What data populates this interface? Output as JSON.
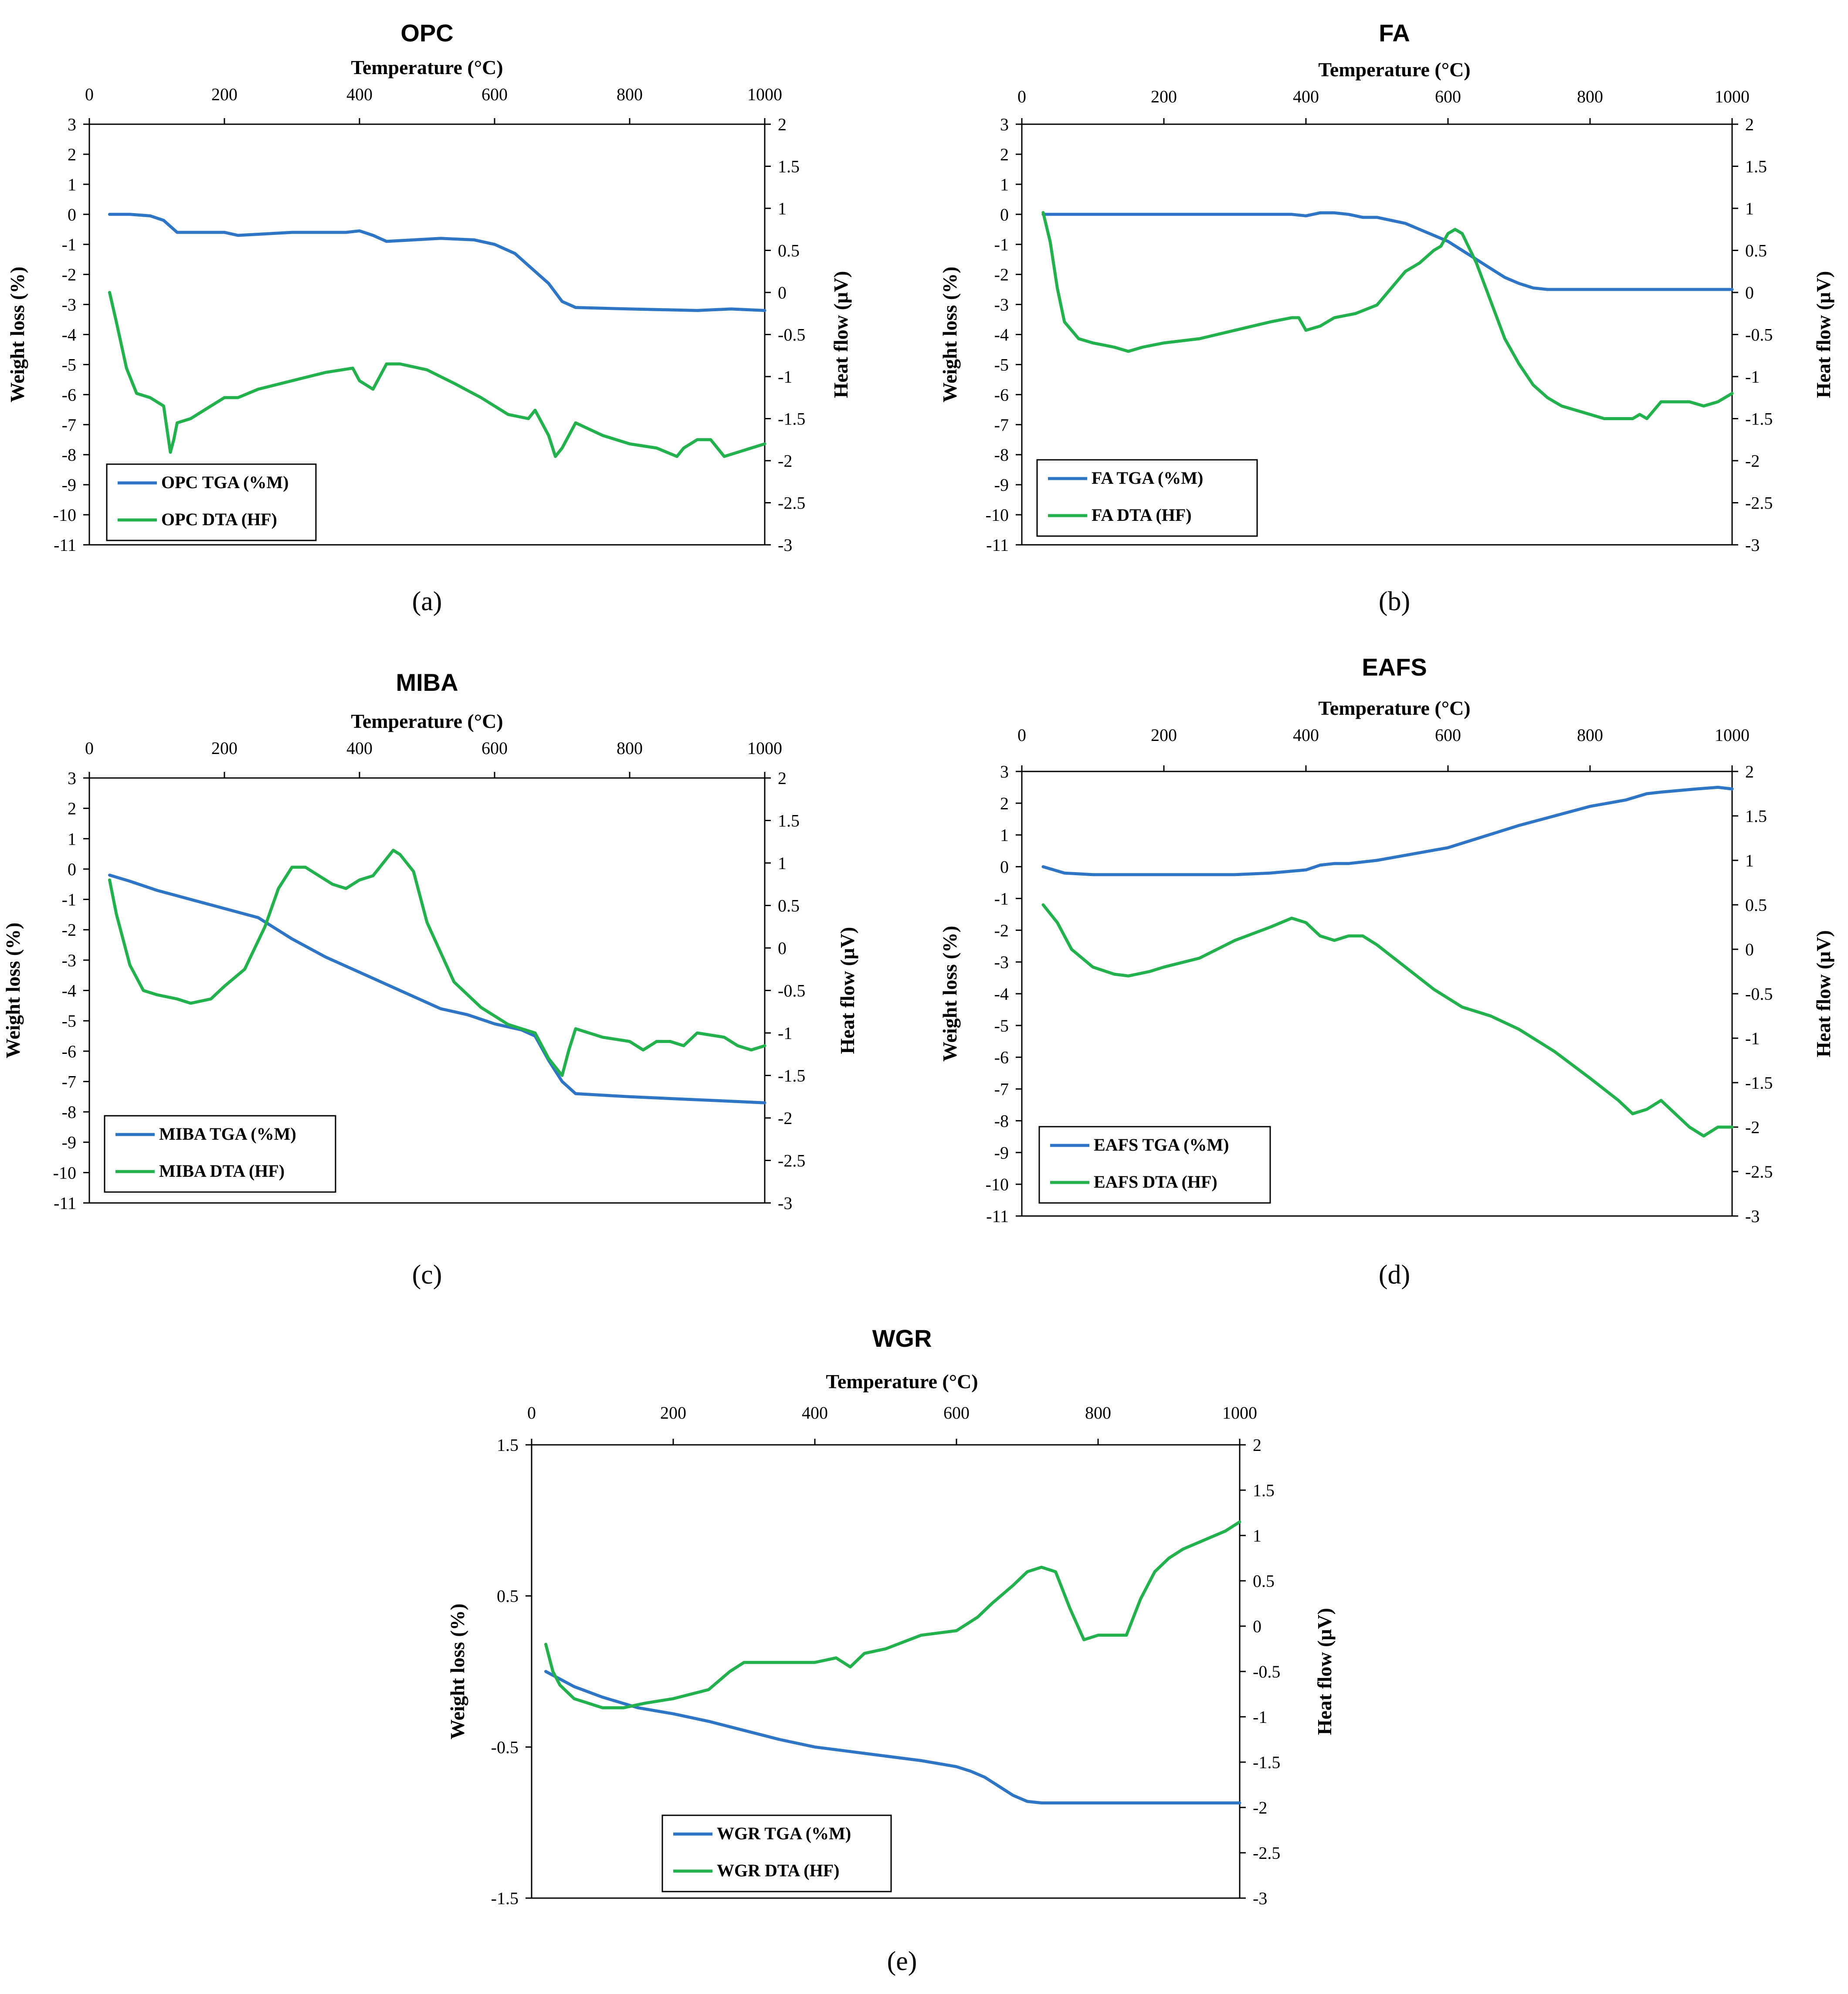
{
  "figure": {
    "panels": [
      "a",
      "b",
      "c",
      "d",
      "e"
    ]
  },
  "colors": {
    "tga": "#2e75c6",
    "dta": "#22b14c",
    "axis": "#000000"
  },
  "chart_data": [
    {
      "id": "a",
      "type": "line",
      "title": "OPC",
      "caption": "(a)",
      "xlabel": "Temperature (°C)",
      "ylabel": "Weight loss (%)",
      "y2label": "Heat flow (μV)",
      "xlim": [
        0,
        1000
      ],
      "xticks": [
        0,
        200,
        400,
        600,
        800,
        1000
      ],
      "ylim": [
        -11,
        3
      ],
      "yticks": [
        3,
        2,
        1,
        0,
        -1,
        -2,
        -3,
        -4,
        -5,
        -6,
        -7,
        -8,
        -9,
        -10,
        -11
      ],
      "y2lim": [
        -3,
        2
      ],
      "y2ticks": [
        2,
        1.5,
        1,
        0.5,
        0,
        -0.5,
        -1,
        -1.5,
        -2,
        -2.5,
        -3
      ],
      "series": [
        {
          "name": "OPC TGA (%M)",
          "axis": "left",
          "color_key": "tga",
          "x": [
            30,
            60,
            90,
            110,
            130,
            200,
            220,
            260,
            300,
            350,
            380,
            400,
            420,
            440,
            480,
            520,
            570,
            600,
            630,
            650,
            680,
            700,
            720,
            800,
            900,
            950,
            1000
          ],
          "y": [
            0,
            0,
            -0.05,
            -0.2,
            -0.6,
            -0.6,
            -0.7,
            -0.65,
            -0.6,
            -0.6,
            -0.6,
            -0.55,
            -0.7,
            -0.9,
            -0.85,
            -0.8,
            -0.85,
            -1.0,
            -1.3,
            -1.7,
            -2.3,
            -2.9,
            -3.1,
            -3.15,
            -3.2,
            -3.15,
            -3.2
          ]
        },
        {
          "name": "OPC DTA (HF)",
          "axis": "right",
          "color_key": "dta",
          "x": [
            30,
            40,
            55,
            70,
            90,
            110,
            120,
            125,
            130,
            150,
            180,
            200,
            220,
            250,
            300,
            350,
            390,
            400,
            410,
            420,
            440,
            460,
            500,
            540,
            580,
            620,
            650,
            660,
            680,
            690,
            700,
            720,
            760,
            800,
            840,
            870,
            880,
            900,
            920,
            940,
            960,
            980,
            1000
          ],
          "y": [
            0,
            -0.35,
            -0.9,
            -1.2,
            -1.25,
            -1.35,
            -1.9,
            -1.75,
            -1.55,
            -1.5,
            -1.35,
            -1.25,
            -1.25,
            -1.15,
            -1.05,
            -0.95,
            -0.9,
            -1.05,
            -1.1,
            -1.15,
            -0.85,
            -0.85,
            -0.92,
            -1.08,
            -1.25,
            -1.45,
            -1.5,
            -1.4,
            -1.7,
            -1.95,
            -1.85,
            -1.55,
            -1.7,
            -1.8,
            -1.85,
            -1.95,
            -1.85,
            -1.75,
            -1.75,
            -1.95,
            -1.9,
            -1.85,
            -1.8
          ]
        }
      ],
      "legend": [
        "OPC TGA (%M)",
        "OPC DTA (HF)"
      ]
    },
    {
      "id": "b",
      "type": "line",
      "title": "FA",
      "caption": "(b)",
      "xlabel": "Temperature (°C)",
      "ylabel": "Weight loss (%)",
      "y2label": "Heat flow (μV)",
      "xlim": [
        0,
        1000
      ],
      "xticks": [
        0,
        200,
        400,
        600,
        800,
        1000
      ],
      "ylim": [
        -11,
        3
      ],
      "yticks": [
        3,
        2,
        1,
        0,
        -1,
        -2,
        -3,
        -4,
        -5,
        -6,
        -7,
        -8,
        -9,
        -10,
        -11
      ],
      "y2lim": [
        -3,
        2
      ],
      "y2ticks": [
        2,
        1.5,
        1,
        0.5,
        0,
        -0.5,
        -1,
        -1.5,
        -2,
        -2.5,
        -3
      ],
      "series": [
        {
          "name": "FA TGA (%M)",
          "axis": "left",
          "color_key": "tga",
          "x": [
            30,
            100,
            200,
            300,
            380,
            400,
            420,
            440,
            460,
            480,
            500,
            520,
            540,
            560,
            580,
            600,
            620,
            640,
            660,
            680,
            700,
            720,
            740,
            760,
            800,
            900,
            1000
          ],
          "y": [
            0,
            0,
            0,
            0,
            0,
            -0.05,
            0.05,
            0.05,
            0,
            -0.1,
            -0.1,
            -0.2,
            -0.3,
            -0.5,
            -0.7,
            -0.9,
            -1.2,
            -1.5,
            -1.8,
            -2.1,
            -2.3,
            -2.45,
            -2.5,
            -2.5,
            -2.5,
            -2.5,
            -2.5
          ]
        },
        {
          "name": "FA DTA (HF)",
          "axis": "right",
          "color_key": "dta",
          "x": [
            30,
            40,
            50,
            60,
            80,
            100,
            130,
            150,
            170,
            200,
            250,
            300,
            350,
            380,
            390,
            400,
            420,
            440,
            470,
            500,
            520,
            540,
            560,
            580,
            590,
            600,
            610,
            620,
            640,
            660,
            680,
            700,
            720,
            740,
            760,
            800,
            820,
            840,
            860,
            870,
            880,
            900,
            920,
            940,
            960,
            980,
            1000
          ],
          "y": [
            0.95,
            0.6,
            0.05,
            -0.35,
            -0.55,
            -0.6,
            -0.65,
            -0.7,
            -0.65,
            -0.6,
            -0.55,
            -0.45,
            -0.35,
            -0.3,
            -0.3,
            -0.45,
            -0.4,
            -0.3,
            -0.25,
            -0.15,
            0.05,
            0.25,
            0.35,
            0.5,
            0.55,
            0.7,
            0.75,
            0.7,
            0.35,
            -0.1,
            -0.55,
            -0.85,
            -1.1,
            -1.25,
            -1.35,
            -1.45,
            -1.5,
            -1.5,
            -1.5,
            -1.45,
            -1.5,
            -1.3,
            -1.3,
            -1.3,
            -1.35,
            -1.3,
            -1.2
          ]
        }
      ],
      "legend": [
        "FA TGA (%M)",
        "FA DTA (HF)"
      ]
    },
    {
      "id": "c",
      "type": "line",
      "title": "MIBA",
      "caption": "(c)",
      "xlabel": "Temperature (°C)",
      "ylabel": "Weight loss (%)",
      "y2label": "Heat flow (μV)",
      "xlim": [
        0,
        1000
      ],
      "xticks": [
        0,
        200,
        400,
        600,
        800,
        1000
      ],
      "ylim": [
        -11,
        3
      ],
      "yticks": [
        3,
        2,
        1,
        0,
        -1,
        -2,
        -3,
        -4,
        -5,
        -6,
        -7,
        -8,
        -9,
        -10,
        -11
      ],
      "y2lim": [
        -3,
        2
      ],
      "y2ticks": [
        2,
        1.5,
        1,
        0.5,
        0,
        -0.5,
        -1,
        -1.5,
        -2,
        -2.5,
        -3
      ],
      "series": [
        {
          "name": "MIBA TGA (%M)",
          "axis": "left",
          "color_key": "tga",
          "x": [
            30,
            60,
            100,
            150,
            200,
            250,
            300,
            350,
            400,
            440,
            480,
            520,
            560,
            600,
            640,
            660,
            680,
            700,
            720,
            800,
            900,
            1000
          ],
          "y": [
            -0.2,
            -0.4,
            -0.7,
            -1.0,
            -1.3,
            -1.6,
            -2.3,
            -2.9,
            -3.4,
            -3.8,
            -4.2,
            -4.6,
            -4.8,
            -5.1,
            -5.3,
            -5.5,
            -6.3,
            -7.0,
            -7.4,
            -7.5,
            -7.6,
            -7.7
          ]
        },
        {
          "name": "MIBA DTA (HF)",
          "axis": "right",
          "color_key": "dta",
          "x": [
            30,
            40,
            60,
            80,
            100,
            130,
            150,
            180,
            200,
            230,
            260,
            280,
            300,
            320,
            340,
            360,
            380,
            400,
            420,
            440,
            450,
            460,
            480,
            500,
            540,
            580,
            620,
            640,
            660,
            680,
            700,
            710,
            720,
            760,
            800,
            820,
            840,
            860,
            880,
            900,
            940,
            960,
            980,
            1000
          ],
          "y": [
            0.8,
            0.4,
            -0.2,
            -0.5,
            -0.55,
            -0.6,
            -0.65,
            -0.6,
            -0.45,
            -0.25,
            0.25,
            0.7,
            0.95,
            0.95,
            0.85,
            0.75,
            0.7,
            0.8,
            0.85,
            1.05,
            1.15,
            1.1,
            0.9,
            0.3,
            -0.4,
            -0.7,
            -0.9,
            -0.95,
            -1.0,
            -1.3,
            -1.5,
            -1.2,
            -0.95,
            -1.05,
            -1.1,
            -1.2,
            -1.1,
            -1.1,
            -1.15,
            -1.0,
            -1.05,
            -1.15,
            -1.2,
            -1.15
          ]
        }
      ],
      "legend": [
        "MIBA TGA (%M)",
        "MIBA DTA (HF)"
      ]
    },
    {
      "id": "d",
      "type": "line",
      "title": "EAFS",
      "caption": "(d)",
      "xlabel": "Temperature (°C)",
      "ylabel": "Weight loss (%)",
      "y2label": "Heat flow (μV)",
      "xlim": [
        0,
        1000
      ],
      "xticks": [
        0,
        200,
        400,
        600,
        800,
        1000
      ],
      "ylim": [
        -11,
        3
      ],
      "yticks": [
        3,
        2,
        1,
        0,
        -1,
        -2,
        -3,
        -4,
        -5,
        -6,
        -7,
        -8,
        -9,
        -10,
        -11
      ],
      "y2lim": [
        -3,
        2
      ],
      "y2ticks": [
        2,
        1.5,
        1,
        0.5,
        0,
        -0.5,
        -1,
        -1.5,
        -2,
        -2.5,
        -3
      ],
      "series": [
        {
          "name": "EAFS TGA (%M)",
          "axis": "left",
          "color_key": "tga",
          "x": [
            30,
            60,
            100,
            200,
            300,
            350,
            400,
            420,
            440,
            460,
            500,
            550,
            600,
            650,
            700,
            750,
            800,
            850,
            880,
            900,
            950,
            980,
            1000
          ],
          "y": [
            0,
            -0.2,
            -0.25,
            -0.25,
            -0.25,
            -0.2,
            -0.1,
            0.05,
            0.1,
            0.1,
            0.2,
            0.4,
            0.6,
            0.95,
            1.3,
            1.6,
            1.9,
            2.1,
            2.3,
            2.35,
            2.45,
            2.5,
            2.45
          ]
        },
        {
          "name": "EAFS DTA (HF)",
          "axis": "right",
          "color_key": "dta",
          "x": [
            30,
            50,
            70,
            100,
            130,
            150,
            180,
            200,
            250,
            300,
            350,
            380,
            400,
            420,
            440,
            460,
            480,
            500,
            540,
            580,
            620,
            660,
            700,
            750,
            800,
            840,
            860,
            880,
            900,
            920,
            940,
            960,
            980,
            1000
          ],
          "y": [
            0.5,
            0.3,
            0.0,
            -0.2,
            -0.28,
            -0.3,
            -0.25,
            -0.2,
            -0.1,
            0.1,
            0.25,
            0.35,
            0.3,
            0.15,
            0.1,
            0.15,
            0.15,
            0.05,
            -0.2,
            -0.45,
            -0.65,
            -0.75,
            -0.9,
            -1.15,
            -1.45,
            -1.7,
            -1.85,
            -1.8,
            -1.7,
            -1.85,
            -2.0,
            -2.1,
            -2.0,
            -2.0
          ]
        }
      ],
      "legend": [
        "EAFS TGA (%M)",
        "EAFS DTA (HF)"
      ]
    },
    {
      "id": "e",
      "type": "line",
      "title": "WGR",
      "caption": "(e)",
      "xlabel": "Temperature (°C)",
      "ylabel": "Weight loss (%)",
      "y2label": "Heat flow (μV)",
      "xlim": [
        0,
        1000
      ],
      "xticks": [
        0,
        200,
        400,
        600,
        800,
        1000
      ],
      "ylim": [
        -1.5,
        1.5
      ],
      "yticks": [
        1.5,
        0.5,
        -0.5,
        -1.5
      ],
      "y2lim": [
        -3,
        2
      ],
      "y2ticks": [
        2,
        1.5,
        1,
        0.5,
        0,
        -0.5,
        -1,
        -1.5,
        -2,
        -2.5,
        -3
      ],
      "series": [
        {
          "name": "WGR TGA (%M)",
          "axis": "left",
          "color_key": "tga",
          "x": [
            20,
            40,
            60,
            100,
            150,
            200,
            250,
            300,
            350,
            400,
            450,
            500,
            550,
            600,
            620,
            640,
            660,
            680,
            700,
            720,
            800,
            900,
            1000
          ],
          "y": [
            0.0,
            -0.05,
            -0.1,
            -0.17,
            -0.24,
            -0.28,
            -0.33,
            -0.39,
            -0.45,
            -0.5,
            -0.53,
            -0.56,
            -0.59,
            -0.63,
            -0.66,
            -0.7,
            -0.76,
            -0.82,
            -0.86,
            -0.87,
            -0.87,
            -0.87,
            -0.87
          ]
        },
        {
          "name": "WGR DTA (HF)",
          "axis": "right",
          "color_key": "dta",
          "x": [
            20,
            30,
            40,
            60,
            80,
            100,
            130,
            160,
            200,
            250,
            280,
            300,
            330,
            360,
            400,
            430,
            450,
            470,
            500,
            550,
            600,
            630,
            650,
            680,
            700,
            720,
            740,
            760,
            780,
            800,
            820,
            840,
            860,
            880,
            900,
            920,
            950,
            980,
            1000
          ],
          "y": [
            -0.2,
            -0.5,
            -0.65,
            -0.8,
            -0.85,
            -0.9,
            -0.9,
            -0.85,
            -0.8,
            -0.7,
            -0.5,
            -0.4,
            -0.4,
            -0.4,
            -0.4,
            -0.35,
            -0.45,
            -0.3,
            -0.25,
            -0.1,
            -0.05,
            0.1,
            0.25,
            0.45,
            0.6,
            0.65,
            0.6,
            0.2,
            -0.15,
            -0.1,
            -0.1,
            -0.1,
            0.3,
            0.6,
            0.75,
            0.85,
            0.95,
            1.05,
            1.15
          ]
        }
      ],
      "legend": [
        "WGR TGA (%M)",
        "WGR DTA (HF)"
      ]
    }
  ]
}
